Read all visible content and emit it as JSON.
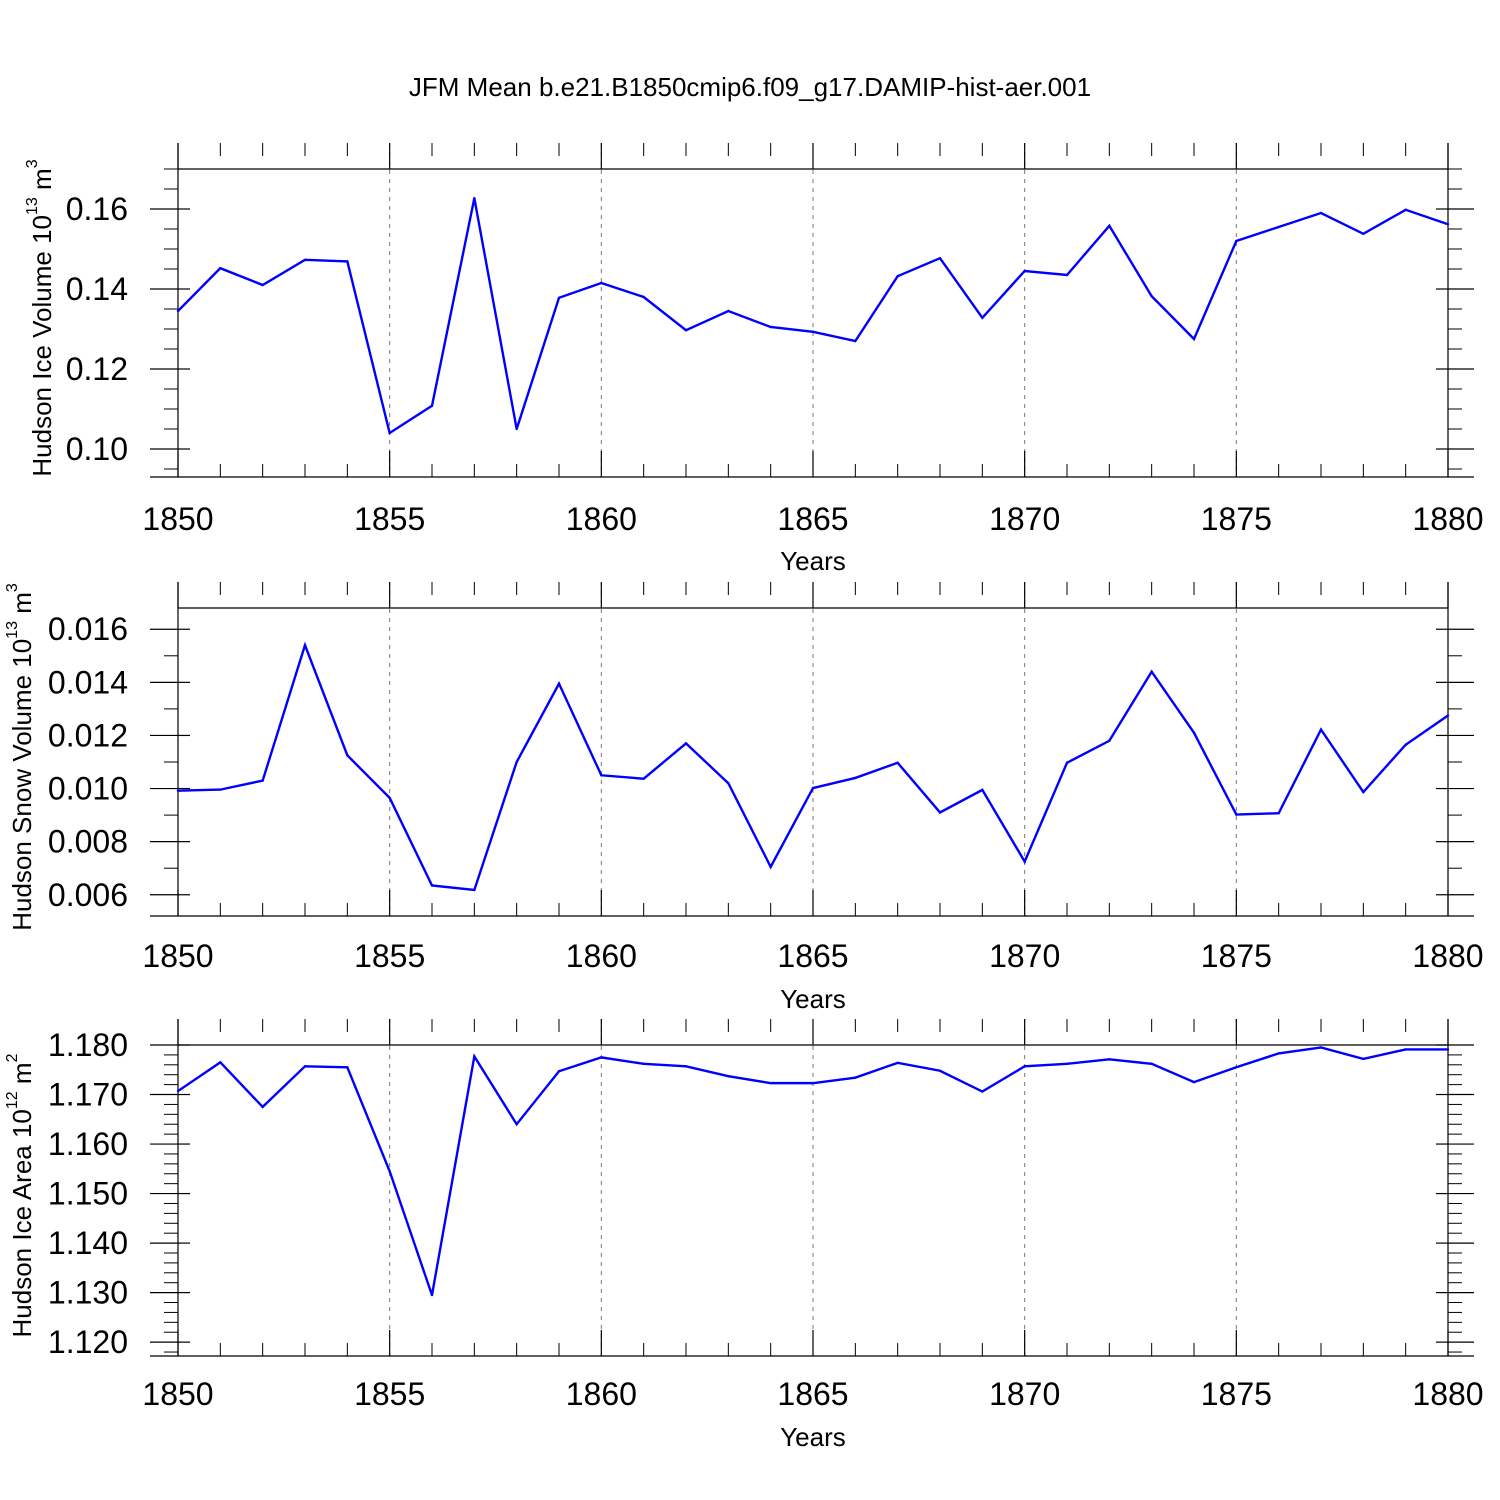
{
  "chart_data": [
    {
      "type": "line",
      "title": "JFM Mean b.e21.B1850cmip6.f09_g17.DAMIP-hist-aer.001",
      "xlabel": "Years",
      "ylabel_main": "Hudson Ice Volume 10",
      "ylabel_exp": "13",
      "ylabel_unit": " m",
      "ylabel_unit_exp": "3",
      "xlim": [
        1850,
        1880
      ],
      "ylim": [
        0.093,
        0.17
      ],
      "x_ticks": [
        "1850",
        "1855",
        "1860",
        "1865",
        "1870",
        "1875",
        "1880"
      ],
      "x_tick_values": [
        1850,
        1855,
        1860,
        1865,
        1870,
        1875,
        1880
      ],
      "y_ticks": [
        "0.10",
        "0.12",
        "0.14",
        "0.16"
      ],
      "y_tick_values": [
        0.1,
        0.12,
        0.14,
        0.16
      ],
      "y_minor_step": 0.005,
      "color": "#0000ff",
      "x": [
        1850,
        1851,
        1852,
        1853,
        1854,
        1855,
        1856,
        1857,
        1858,
        1859,
        1860,
        1861,
        1862,
        1863,
        1864,
        1865,
        1866,
        1867,
        1868,
        1869,
        1870,
        1871,
        1872,
        1873,
        1874,
        1875,
        1876,
        1877,
        1878,
        1879,
        1880
      ],
      "values": [
        0.1345,
        0.1452,
        0.141,
        0.1473,
        0.1469,
        0.104,
        0.1108,
        0.1627,
        0.105,
        0.1378,
        0.1415,
        0.138,
        0.1297,
        0.1345,
        0.1305,
        0.1293,
        0.127,
        0.1432,
        0.1477,
        0.1328,
        0.1445,
        0.1435,
        0.1558,
        0.1382,
        0.1275,
        0.152,
        0.1555,
        0.159,
        0.1538,
        0.1598,
        0.1562
      ]
    },
    {
      "type": "line",
      "title": "",
      "xlabel": "Years",
      "ylabel_main": "Hudson Snow Volume 10",
      "ylabel_exp": "13",
      "ylabel_unit": " m",
      "ylabel_unit_exp": "3",
      "xlim": [
        1850,
        1880
      ],
      "ylim": [
        0.0052,
        0.0168
      ],
      "x_ticks": [
        "1850",
        "1855",
        "1860",
        "1865",
        "1870",
        "1875",
        "1880"
      ],
      "x_tick_values": [
        1850,
        1855,
        1860,
        1865,
        1870,
        1875,
        1880
      ],
      "y_ticks": [
        "0.006",
        "0.008",
        "0.010",
        "0.012",
        "0.014",
        "0.016"
      ],
      "y_tick_values": [
        0.006,
        0.008,
        0.01,
        0.012,
        0.014,
        0.016
      ],
      "y_minor_step": 0.001,
      "color": "#0000ff",
      "x": [
        1850,
        1851,
        1852,
        1853,
        1854,
        1855,
        1856,
        1857,
        1858,
        1859,
        1860,
        1861,
        1862,
        1863,
        1864,
        1865,
        1866,
        1867,
        1868,
        1869,
        1870,
        1871,
        1872,
        1873,
        1874,
        1875,
        1876,
        1877,
        1878,
        1879,
        1880
      ],
      "values": [
        0.00992,
        0.00996,
        0.0103,
        0.0154,
        0.01125,
        0.00965,
        0.00635,
        0.00618,
        0.011,
        0.01395,
        0.0105,
        0.01037,
        0.0117,
        0.0102,
        0.00705,
        0.01002,
        0.0104,
        0.01097,
        0.0091,
        0.00995,
        0.00725,
        0.01097,
        0.0118,
        0.0144,
        0.0121,
        0.00902,
        0.00907,
        0.01222,
        0.00987,
        0.01165,
        0.01275
      ]
    },
    {
      "type": "line",
      "title": "",
      "xlabel": "Years",
      "ylabel_main": "Hudson Ice Area 10",
      "ylabel_exp": "12",
      "ylabel_unit": " m",
      "ylabel_unit_exp": "2",
      "xlim": [
        1850,
        1880
      ],
      "ylim": [
        1.1172,
        1.18
      ],
      "x_ticks": [
        "1850",
        "1855",
        "1860",
        "1865",
        "1870",
        "1875",
        "1880"
      ],
      "x_tick_values": [
        1850,
        1855,
        1860,
        1865,
        1870,
        1875,
        1880
      ],
      "y_ticks": [
        "1.120",
        "1.130",
        "1.140",
        "1.150",
        "1.160",
        "1.170",
        "1.180"
      ],
      "y_tick_values": [
        1.12,
        1.13,
        1.14,
        1.15,
        1.16,
        1.17,
        1.18
      ],
      "y_minor_step": 0.002,
      "color": "#0000ff",
      "x": [
        1850,
        1851,
        1852,
        1853,
        1854,
        1855,
        1856,
        1857,
        1858,
        1859,
        1860,
        1861,
        1862,
        1863,
        1864,
        1865,
        1866,
        1867,
        1868,
        1869,
        1870,
        1871,
        1872,
        1873,
        1874,
        1875,
        1876,
        1877,
        1878,
        1879,
        1880
      ],
      "values": [
        1.1707,
        1.1765,
        1.1675,
        1.1757,
        1.1755,
        1.1545,
        1.1295,
        1.1777,
        1.164,
        1.1747,
        1.1775,
        1.1762,
        1.1757,
        1.1737,
        1.1723,
        1.1723,
        1.1734,
        1.1764,
        1.1748,
        1.1706,
        1.1757,
        1.1762,
        1.1771,
        1.1762,
        1.1725,
        1.1755,
        1.1783,
        1.1795,
        1.1772,
        1.1791,
        1.1791
      ]
    }
  ]
}
